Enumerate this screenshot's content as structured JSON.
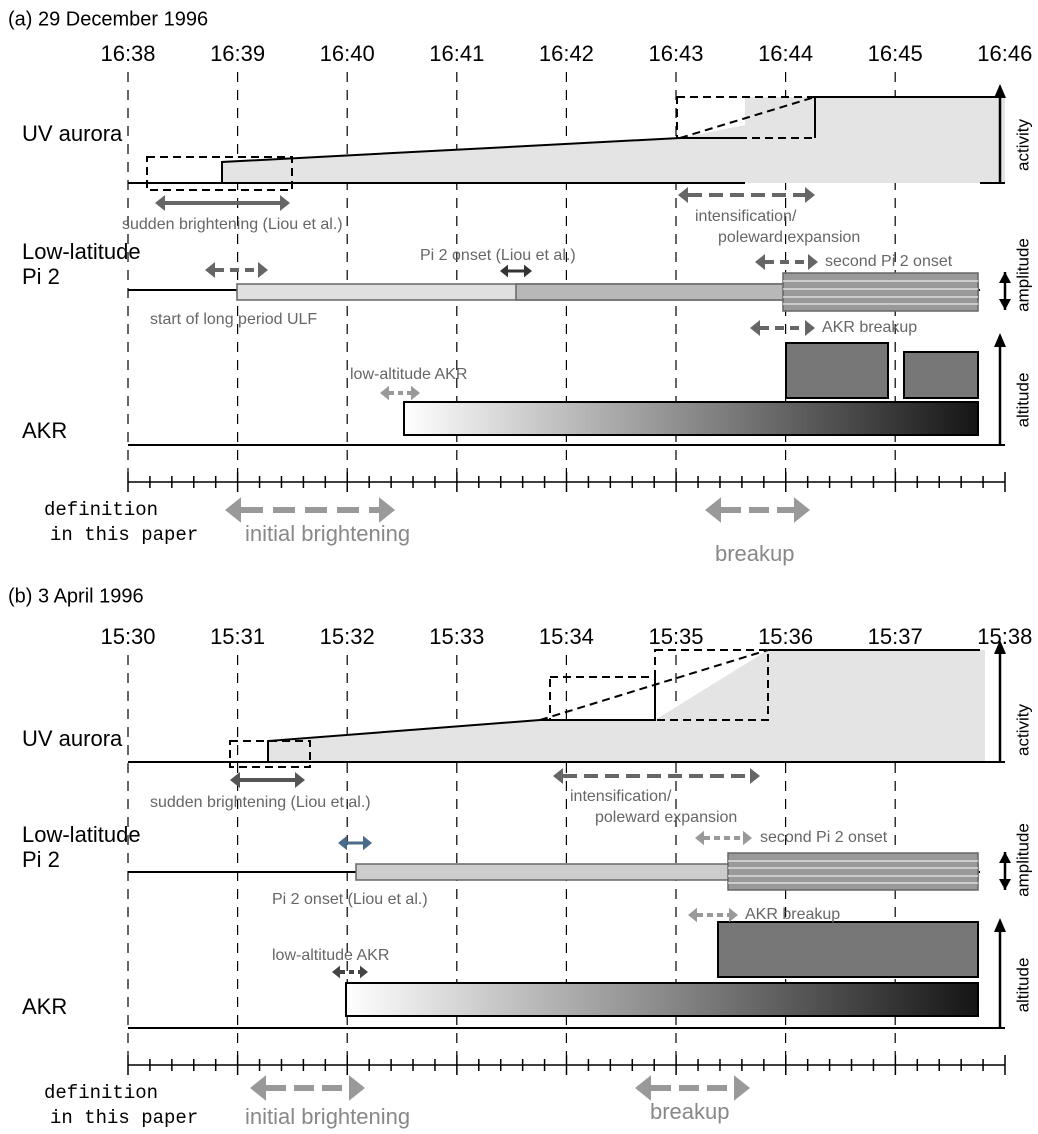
{
  "panels": [
    {
      "title": "(a)  29 December 1996",
      "times": [
        "16:38",
        "16:39",
        "16:40",
        "16:41",
        "16:42",
        "16:43",
        "16:44",
        "16:45",
        "16:46"
      ],
      "rows": {
        "uv": "UV aurora",
        "pi2_line1": "Low-latitude",
        "pi2_line2": "Pi 2",
        "akr": "AKR"
      },
      "axis_labels": {
        "activity": "activity",
        "amplitude": "amplitude",
        "altitude": "altitude"
      },
      "annotations": {
        "sudden": "sudden brightening (Liou et al.)",
        "intens1": "intensification/",
        "intens2": "poleward expansion",
        "pi2onset": "Pi 2 onset (Liou et al.)",
        "second": "second Pi 2 onset",
        "ulf": "start of long period ULF",
        "akrbreak": "AKR breakup",
        "lowakr": "low-altitude AKR"
      },
      "definition": [
        "definition",
        "in this paper"
      ],
      "phases": {
        "initial": "initial brightening",
        "breakup": "breakup"
      }
    },
    {
      "title": "(b)  3 April 1996",
      "times": [
        "15:30",
        "15:31",
        "15:32",
        "15:33",
        "15:34",
        "15:35",
        "15:36",
        "15:37",
        "15:38"
      ],
      "rows": {
        "uv": "UV aurora",
        "pi2_line1": "Low-latitude",
        "pi2_line2": "Pi 2",
        "akr": "AKR"
      },
      "axis_labels": {
        "activity": "activity",
        "amplitude": "amplitude",
        "altitude": "altitude"
      },
      "annotations": {
        "sudden": "sudden brightening (Liou et al.)",
        "intens1": "intensification/",
        "intens2": "poleward expansion",
        "pi2onset": "Pi 2 onset (Liou et al.)",
        "second": "second Pi 2 onset",
        "akrbreak": "AKR breakup",
        "lowakr": "low-altitude AKR"
      },
      "definition": [
        "definition",
        "in this paper"
      ],
      "phases": {
        "initial": "initial brightening",
        "breakup": "breakup"
      }
    }
  ]
}
